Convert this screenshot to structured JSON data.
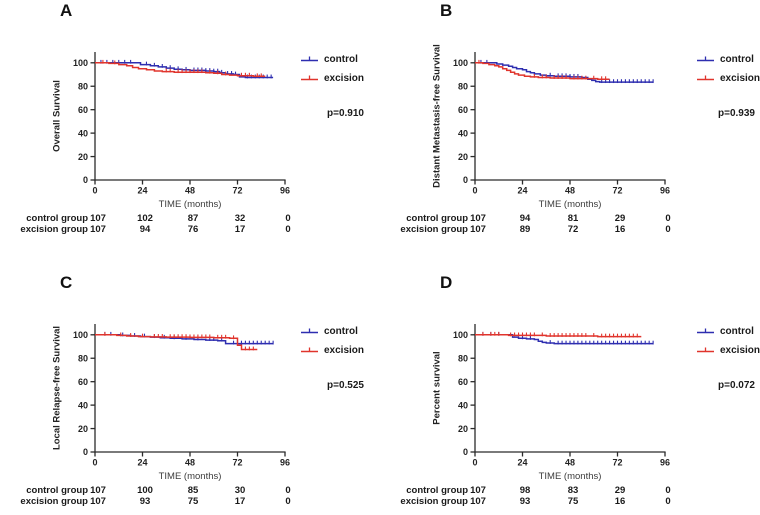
{
  "colors": {
    "control": "#2E2EB0",
    "excision": "#E0342C",
    "axis": "#2B2B2B"
  },
  "chart_data": [
    {
      "type": "line",
      "panel": "A",
      "ylabel": "Overall Survival",
      "xlabel": "TIME (months)",
      "p_value": "p=0.910",
      "xticks": [
        0,
        24,
        48,
        72,
        96
      ],
      "yticks": [
        0,
        20,
        40,
        60,
        80,
        100
      ],
      "xlim": [
        0,
        96
      ],
      "ylim": [
        0,
        110
      ],
      "legend_position": "right",
      "series": [
        {
          "name": "control",
          "color": "#2E2EB0",
          "points": [
            [
              0,
              100
            ],
            [
              20,
              100
            ],
            [
              23,
              98.5
            ],
            [
              28,
              97.5
            ],
            [
              32,
              96.5
            ],
            [
              36,
              95.5
            ],
            [
              40,
              94.5
            ],
            [
              44,
              94
            ],
            [
              48,
              93.5
            ],
            [
              56,
              93
            ],
            [
              60,
              92.5
            ],
            [
              63,
              91.5
            ],
            [
              66,
              90.5
            ],
            [
              70,
              90
            ],
            [
              73,
              88
            ],
            [
              76,
              87.5
            ],
            [
              90,
              87.5
            ]
          ],
          "censors": [
            3,
            6,
            9,
            12,
            15,
            18,
            26,
            30,
            34,
            38,
            42,
            46,
            50,
            52,
            54,
            56,
            58,
            60,
            62,
            64,
            67,
            69,
            71,
            77,
            79,
            81,
            83,
            85,
            87,
            89
          ]
        },
        {
          "name": "excision",
          "color": "#E0342C",
          "points": [
            [
              0,
              100
            ],
            [
              7,
              99.5
            ],
            [
              12,
              98.5
            ],
            [
              16,
              97.5
            ],
            [
              19,
              96
            ],
            [
              22,
              95
            ],
            [
              26,
              94
            ],
            [
              30,
              93
            ],
            [
              34,
              92.5
            ],
            [
              40,
              92
            ],
            [
              56,
              91.5
            ],
            [
              60,
              91
            ],
            [
              64,
              90
            ],
            [
              68,
              89.5
            ],
            [
              72,
              89
            ],
            [
              80,
              88.5
            ],
            [
              86,
              88.5
            ]
          ],
          "censors": [
            4,
            10,
            36,
            38,
            42,
            44,
            46,
            48,
            50,
            52,
            54,
            58,
            62,
            66,
            74,
            76,
            78,
            82,
            84
          ]
        }
      ],
      "risk_table": {
        "rows": [
          {
            "label": "control group",
            "counts": [
              107,
              102,
              87,
              32,
              0
            ]
          },
          {
            "label": "excision group",
            "counts": [
              107,
              94,
              76,
              17,
              0
            ]
          }
        ]
      }
    },
    {
      "type": "line",
      "panel": "B",
      "ylabel": "Distant Metastasis-free Survival",
      "xlabel": "TIME (months)",
      "p_value": "p=0.939",
      "xticks": [
        0,
        24,
        48,
        72,
        96
      ],
      "yticks": [
        0,
        20,
        40,
        60,
        80,
        100
      ],
      "xlim": [
        0,
        96
      ],
      "ylim": [
        0,
        110
      ],
      "legend_position": "right",
      "series": [
        {
          "name": "control",
          "color": "#2E2EB0",
          "points": [
            [
              0,
              100
            ],
            [
              9,
              100
            ],
            [
              11,
              99
            ],
            [
              14,
              98
            ],
            [
              17,
              97
            ],
            [
              19,
              96
            ],
            [
              21,
              95
            ],
            [
              24,
              94
            ],
            [
              26,
              92.5
            ],
            [
              28,
              91.5
            ],
            [
              30,
              90.5
            ],
            [
              33,
              89.5
            ],
            [
              36,
              89
            ],
            [
              40,
              88.5
            ],
            [
              48,
              88
            ],
            [
              54,
              87.5
            ],
            [
              57,
              86
            ],
            [
              59,
              85
            ],
            [
              61,
              84
            ],
            [
              63,
              83.5
            ],
            [
              90,
              83.5
            ]
          ],
          "censors": [
            3,
            6,
            38,
            42,
            44,
            46,
            48,
            50,
            52,
            64,
            66,
            68,
            70,
            72,
            74,
            76,
            78,
            80,
            82,
            84,
            86,
            88,
            90
          ]
        },
        {
          "name": "excision",
          "color": "#E0342C",
          "points": [
            [
              0,
              100
            ],
            [
              4,
              99.5
            ],
            [
              7,
              98.5
            ],
            [
              10,
              97.5
            ],
            [
              12,
              96.5
            ],
            [
              14,
              95
            ],
            [
              16,
              93.5
            ],
            [
              18,
              92
            ],
            [
              20,
              90.5
            ],
            [
              22,
              89.5
            ],
            [
              25,
              88.5
            ],
            [
              28,
              88
            ],
            [
              32,
              87.5
            ],
            [
              38,
              87
            ],
            [
              48,
              86.5
            ],
            [
              58,
              86.5
            ],
            [
              62,
              86
            ],
            [
              68,
              86
            ]
          ],
          "censors": [
            2,
            30,
            34,
            36,
            40,
            42,
            44,
            46,
            50,
            52,
            54,
            56,
            60,
            64,
            66
          ]
        }
      ],
      "risk_table": {
        "rows": [
          {
            "label": "control group",
            "counts": [
              107,
              94,
              81,
              29,
              0
            ]
          },
          {
            "label": "excision group",
            "counts": [
              107,
              89,
              72,
              16,
              0
            ]
          }
        ]
      }
    },
    {
      "type": "line",
      "panel": "C",
      "ylabel": "Local Relapse-free Survival",
      "xlabel": "TIME (months)",
      "p_value": "p=0.525",
      "xticks": [
        0,
        24,
        48,
        72,
        96
      ],
      "yticks": [
        0,
        20,
        40,
        60,
        80,
        100
      ],
      "xlim": [
        0,
        96
      ],
      "ylim": [
        0,
        110
      ],
      "legend_position": "right",
      "series": [
        {
          "name": "control",
          "color": "#2E2EB0",
          "points": [
            [
              0,
              100
            ],
            [
              10,
              100
            ],
            [
              13,
              99.5
            ],
            [
              18,
              99
            ],
            [
              23,
              98.5
            ],
            [
              28,
              98
            ],
            [
              33,
              97.5
            ],
            [
              38,
              97
            ],
            [
              44,
              96.5
            ],
            [
              50,
              96
            ],
            [
              56,
              95.5
            ],
            [
              62,
              95
            ],
            [
              66,
              92.5
            ],
            [
              90,
              92.5
            ]
          ],
          "censors": [
            5,
            8,
            14,
            20,
            25,
            30,
            35,
            40,
            46,
            52,
            58,
            60,
            64,
            70,
            72,
            74,
            76,
            78,
            80,
            82,
            84,
            86,
            88,
            90
          ]
        },
        {
          "name": "excision",
          "color": "#E0342C",
          "points": [
            [
              0,
              100
            ],
            [
              9,
              100
            ],
            [
              11,
              99.5
            ],
            [
              16,
              99
            ],
            [
              22,
              98.5
            ],
            [
              28,
              98.2
            ],
            [
              36,
              98
            ],
            [
              48,
              97.8
            ],
            [
              60,
              97.5
            ],
            [
              68,
              97
            ],
            [
              72,
              91
            ],
            [
              74,
              87.5
            ],
            [
              82,
              87.5
            ]
          ],
          "censors": [
            5,
            13,
            18,
            24,
            30,
            32,
            34,
            38,
            40,
            42,
            44,
            46,
            48,
            50,
            52,
            54,
            56,
            58,
            62,
            64,
            66,
            70,
            76,
            78,
            80
          ]
        }
      ],
      "risk_table": {
        "rows": [
          {
            "label": "control group",
            "counts": [
              107,
              100,
              85,
              30,
              0
            ]
          },
          {
            "label": "excision group",
            "counts": [
              107,
              93,
              75,
              17,
              0
            ]
          }
        ]
      }
    },
    {
      "type": "line",
      "panel": "D",
      "ylabel": "Percent survival",
      "xlabel": "TIME (months)",
      "p_value": "p=0.072",
      "xticks": [
        0,
        24,
        48,
        72,
        96
      ],
      "yticks": [
        0,
        20,
        40,
        60,
        80,
        100
      ],
      "xlim": [
        0,
        96
      ],
      "ylim": [
        0,
        110
      ],
      "legend_position": "right",
      "series": [
        {
          "name": "control",
          "color": "#2E2EB0",
          "points": [
            [
              0,
              100
            ],
            [
              17,
              100
            ],
            [
              19,
              98
            ],
            [
              22,
              97
            ],
            [
              26,
              96.5
            ],
            [
              30,
              96
            ],
            [
              32,
              94.5
            ],
            [
              34,
              93.5
            ],
            [
              36,
              93
            ],
            [
              40,
              92.5
            ],
            [
              90,
              92.5
            ]
          ],
          "censors": [
            4,
            8,
            12,
            24,
            28,
            38,
            42,
            44,
            46,
            48,
            50,
            52,
            54,
            56,
            58,
            60,
            62,
            64,
            66,
            68,
            70,
            72,
            74,
            76,
            78,
            80,
            82,
            84,
            86,
            88,
            90
          ]
        },
        {
          "name": "excision",
          "color": "#E0342C",
          "points": [
            [
              0,
              100
            ],
            [
              15,
              100
            ],
            [
              17,
              99.5
            ],
            [
              32,
              99.5
            ],
            [
              36,
              99
            ],
            [
              58,
              99
            ],
            [
              62,
              98.5
            ],
            [
              84,
              98.5
            ]
          ],
          "censors": [
            4,
            8,
            10,
            12,
            18,
            20,
            22,
            24,
            26,
            28,
            30,
            34,
            38,
            40,
            42,
            44,
            46,
            48,
            50,
            52,
            54,
            56,
            60,
            64,
            66,
            68,
            70,
            72,
            74,
            76,
            78,
            80,
            82
          ]
        }
      ],
      "risk_table": {
        "rows": [
          {
            "label": "control group",
            "counts": [
              107,
              98,
              83,
              29,
              0
            ]
          },
          {
            "label": "excision group",
            "counts": [
              107,
              93,
              75,
              16,
              0
            ]
          }
        ]
      }
    }
  ]
}
